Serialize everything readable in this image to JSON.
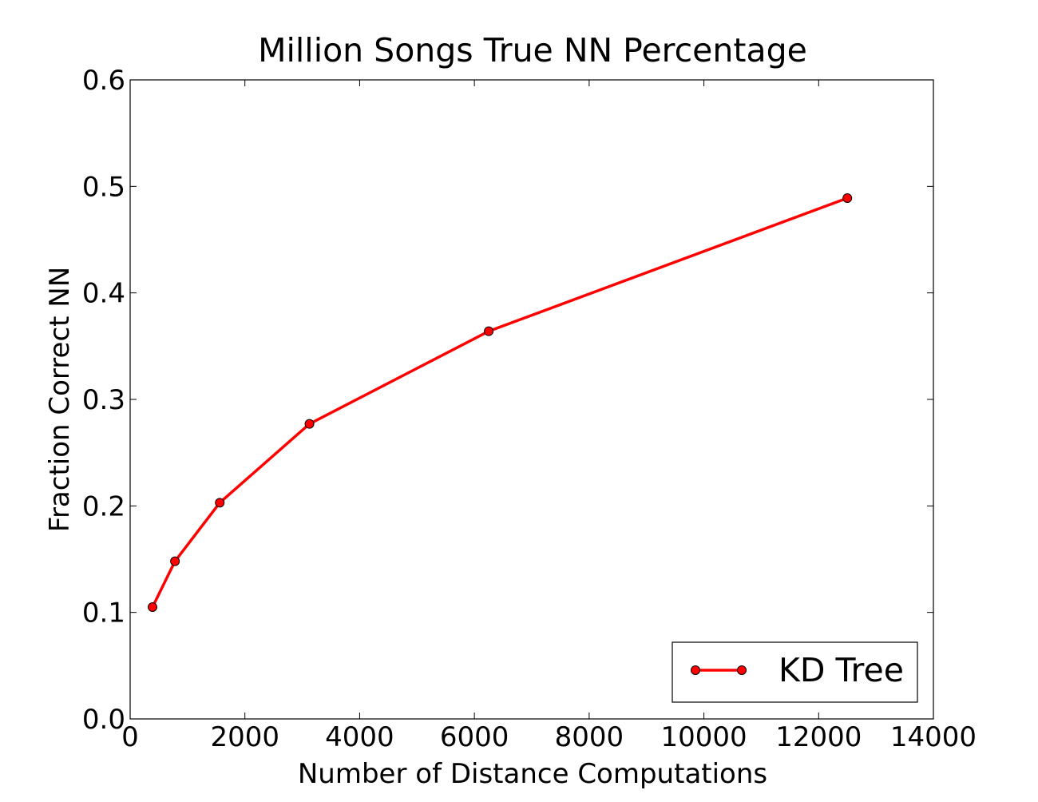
{
  "chart_data": {
    "type": "line",
    "title": "Million Songs True NN Percentage",
    "xlabel": "Number of Distance Computations",
    "ylabel": "Fraction Correct NN",
    "xlim": [
      0,
      14000
    ],
    "ylim": [
      0.0,
      0.6
    ],
    "xticks": [
      0,
      2000,
      4000,
      6000,
      8000,
      10000,
      12000,
      14000
    ],
    "xtick_labels": [
      "0",
      "2000",
      "4000",
      "6000",
      "8000",
      "10000",
      "12000",
      "14000"
    ],
    "yticks": [
      0.0,
      0.1,
      0.2,
      0.3,
      0.4,
      0.5,
      0.6
    ],
    "ytick_labels": [
      "0.0",
      "0.1",
      "0.2",
      "0.3",
      "0.4",
      "0.5",
      "0.6"
    ],
    "grid": false,
    "legend_position": "bottom-right",
    "series": [
      {
        "name": "KD Tree",
        "color": "#ff0000",
        "marker": "circle",
        "x": [
          390,
          781,
          1562,
          3125,
          6250,
          12500
        ],
        "y": [
          0.105,
          0.148,
          0.203,
          0.277,
          0.364,
          0.489
        ]
      }
    ]
  }
}
